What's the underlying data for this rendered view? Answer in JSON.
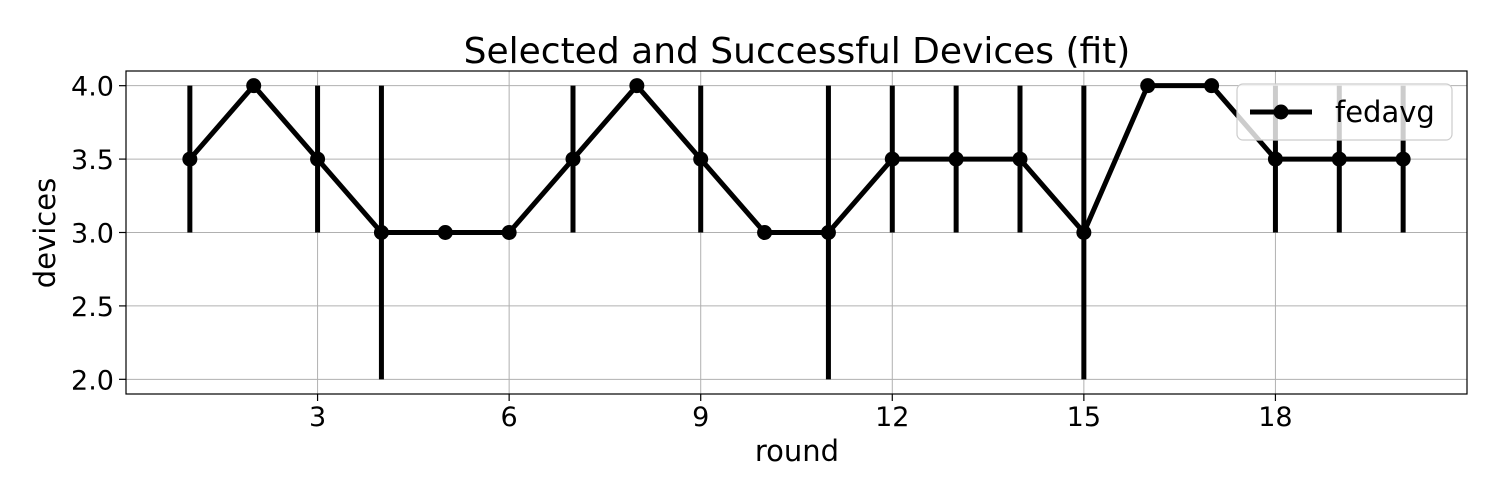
{
  "chart_data": {
    "type": "line",
    "title": "Selected and Successful Devices (fit)",
    "xlabel": "round",
    "ylabel": "devices",
    "xlim": [
      -0.0,
      21.0
    ],
    "ylim": [
      1.9,
      4.1
    ],
    "xticks": [
      3,
      6,
      9,
      12,
      15,
      18
    ],
    "yticks": [
      2.0,
      2.5,
      3.0,
      3.5,
      4.0
    ],
    "grid": true,
    "legend_position": "top-right",
    "series": [
      {
        "name": "fedavg",
        "color": "#000000",
        "marker": "circle",
        "x": [
          1,
          2,
          3,
          4,
          5,
          6,
          7,
          8,
          9,
          10,
          11,
          12,
          13,
          14,
          15,
          16,
          17,
          18,
          19,
          20
        ],
        "y": [
          3.5,
          4.0,
          3.5,
          3.0,
          3.0,
          3.0,
          3.5,
          4.0,
          3.5,
          3.0,
          3.0,
          3.5,
          3.5,
          3.5,
          3.0,
          4.0,
          4.0,
          3.5,
          3.5,
          3.5
        ],
        "err_low": [
          3.0,
          4.0,
          3.0,
          2.0,
          3.0,
          3.0,
          3.0,
          4.0,
          3.0,
          3.0,
          2.0,
          3.0,
          3.0,
          3.0,
          2.0,
          4.0,
          4.0,
          3.0,
          3.0,
          3.0
        ],
        "err_high": [
          4.0,
          4.0,
          4.0,
          4.0,
          3.0,
          3.0,
          4.0,
          4.0,
          4.0,
          3.0,
          4.0,
          4.0,
          4.0,
          4.0,
          4.0,
          4.0,
          4.0,
          4.0,
          4.0,
          4.0
        ]
      }
    ]
  }
}
